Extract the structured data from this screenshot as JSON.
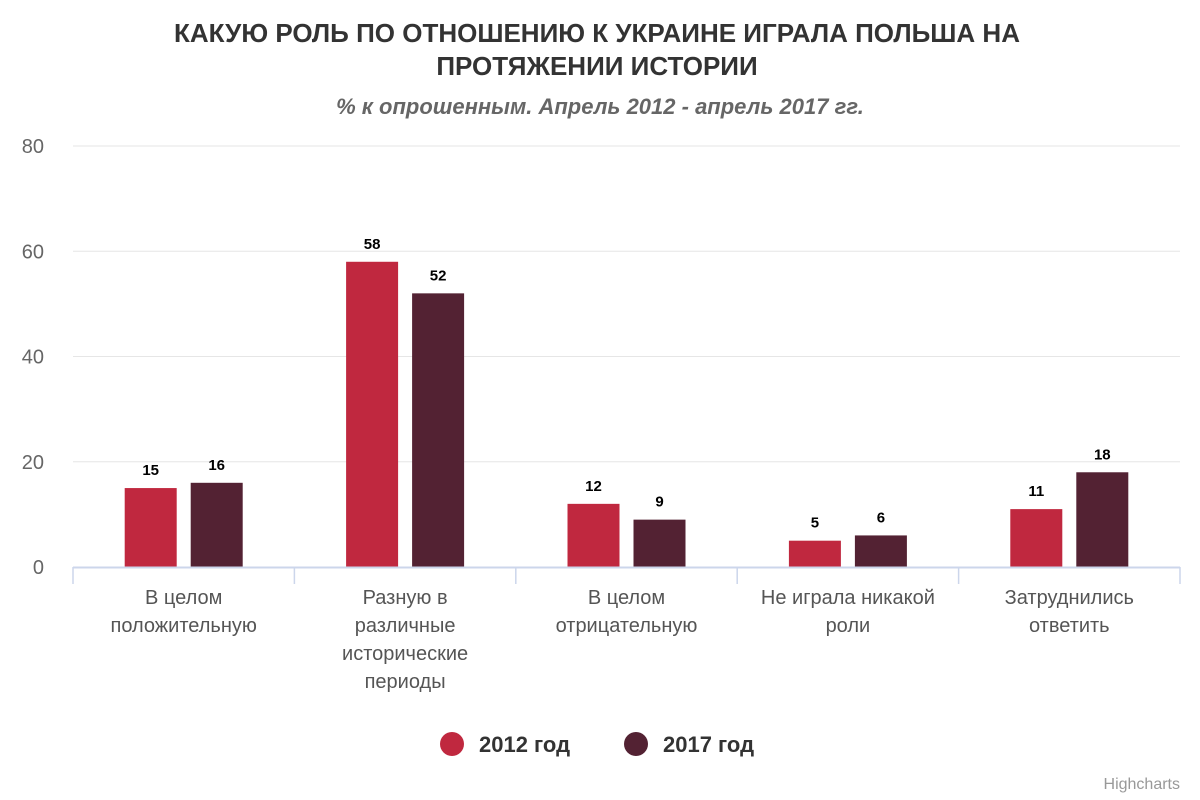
{
  "chart_data": {
    "type": "bar",
    "title": "КАКУЮ РОЛЬ ПО ОТНОШЕНИЮ К УКРАИНЕ ИГРАЛА ПОЛЬША НА ПРОТЯЖЕНИИ ИСТОРИИ",
    "title_lines": [
      "КАКУЮ РОЛЬ ПО ОТНОШЕНИЮ К УКРАИНЕ ИГРАЛА ПОЛЬША НА",
      "ПРОТЯЖЕНИИ ИСТОРИИ"
    ],
    "subtitle": "% к опрошенным. Апрель 2012 - апрель 2017 гг.",
    "xlabel": "",
    "ylabel": "",
    "ylim": [
      0,
      80
    ],
    "yticks": [
      0,
      20,
      40,
      60,
      80
    ],
    "grid": true,
    "legend_position": "bottom-center",
    "categories": [
      [
        "В целом",
        "положительную"
      ],
      [
        "Разную в",
        "различные",
        "исторические",
        "периоды"
      ],
      [
        "В целом",
        "отрицательную"
      ],
      [
        "Не играла никакой",
        "роли"
      ],
      [
        "Затруднились",
        "ответить"
      ]
    ],
    "series": [
      {
        "name": "2012 год",
        "color": "#c0283f",
        "values": [
          15,
          58,
          12,
          5,
          11
        ]
      },
      {
        "name": "2017 год",
        "color": "#532233",
        "values": [
          16,
          52,
          9,
          6,
          18
        ]
      }
    ]
  },
  "credits": "Highcharts"
}
